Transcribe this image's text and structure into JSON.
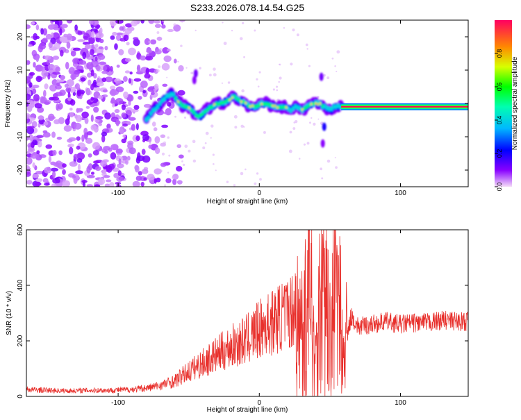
{
  "title": "S233.2026.078.14.54.G25",
  "chart_data": [
    {
      "type": "heatmap",
      "xlabel": "Height of straight line (km)",
      "ylabel": "Frequency (Hz)",
      "xlim": [
        -165,
        148
      ],
      "ylim": [
        -25,
        25
      ],
      "xticks": [
        -100,
        0,
        100
      ],
      "yticks": [
        -20,
        -10,
        0,
        10,
        20
      ],
      "grid": false,
      "colorbar": {
        "label": "Normalized spectral amplitude",
        "range": [
          0,
          1
        ],
        "ticks": [
          0.0,
          0.2,
          0.4,
          0.6,
          0.8
        ]
      },
      "signal_track": [
        [
          -80,
          -5
        ],
        [
          -75,
          -2
        ],
        [
          -70,
          0
        ],
        [
          -66,
          2
        ],
        [
          -62,
          3
        ],
        [
          -58,
          1
        ],
        [
          -54,
          -1
        ],
        [
          -50,
          -1
        ],
        [
          -46,
          -3
        ],
        [
          -42,
          -4
        ],
        [
          -38,
          -2
        ],
        [
          -34,
          -1
        ],
        [
          -30,
          0
        ],
        [
          -26,
          0
        ],
        [
          -22,
          1
        ],
        [
          -18,
          2
        ],
        [
          -14,
          1
        ],
        [
          -10,
          0
        ],
        [
          -6,
          -1
        ],
        [
          -2,
          -1
        ],
        [
          2,
          0
        ],
        [
          6,
          0
        ],
        [
          10,
          -1
        ],
        [
          14,
          -1
        ],
        [
          18,
          -1
        ],
        [
          22,
          -2
        ],
        [
          26,
          -1
        ],
        [
          30,
          -2
        ],
        [
          34,
          -1
        ],
        [
          38,
          0
        ],
        [
          42,
          0
        ],
        [
          46,
          -1
        ],
        [
          50,
          -2
        ],
        [
          54,
          -1
        ],
        [
          58,
          -1
        ]
      ],
      "steady_line": {
        "x_range": [
          58,
          148
        ],
        "frequency": -1,
        "amplitude": 1.0
      }
    },
    {
      "type": "line",
      "xlabel": "Height of straight line (km)",
      "ylabel": "SNR (10 * v/v)",
      "xlim": [
        -165,
        148
      ],
      "ylim": [
        0,
        600
      ],
      "xticks": [
        -100,
        0,
        100
      ],
      "yticks": [
        0,
        200,
        400,
        600
      ],
      "grid": false,
      "series": [
        {
          "color": "#e8302c",
          "x": [
            -165,
            -150,
            -135,
            -120,
            -105,
            -90,
            -80,
            -70,
            -60,
            -50,
            -40,
            -30,
            -20,
            -10,
            0,
            10,
            20,
            25,
            30,
            35,
            40,
            45,
            50,
            55,
            60,
            65,
            70,
            80,
            90,
            100,
            110,
            120,
            130,
            140,
            148
          ],
          "values": [
            25,
            22,
            20,
            22,
            22,
            25,
            30,
            40,
            55,
            90,
            120,
            150,
            180,
            200,
            240,
            270,
            300,
            320,
            200,
            350,
            150,
            420,
            200,
            400,
            150,
            290,
            250,
            260,
            270,
            260,
            265,
            265,
            275,
            270,
            270
          ]
        }
      ]
    }
  ]
}
